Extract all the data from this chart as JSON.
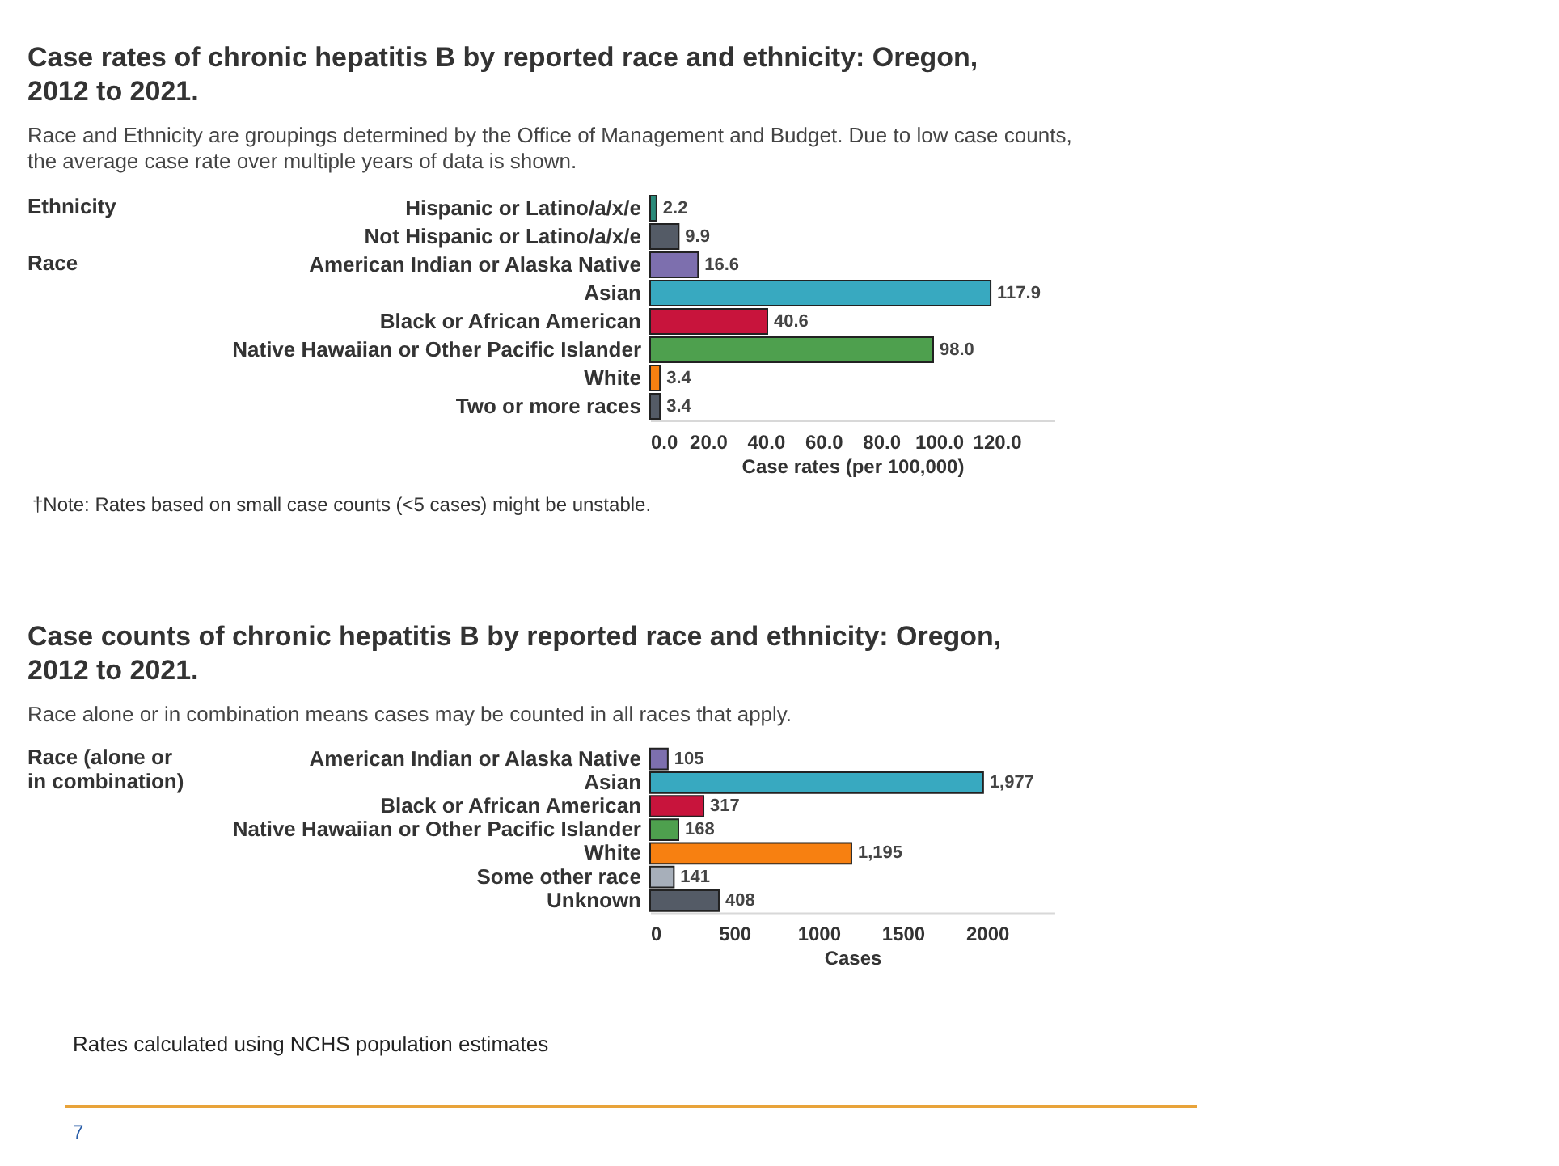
{
  "chart_data": [
    {
      "type": "bar",
      "orientation": "horizontal",
      "title": "Case rates of chronic hepatitis B by reported race and ethnicity: Oregon, 2012 to 2021.",
      "subtitle": "Race and Ethnicity are groupings determined by the Office of Management and Budget. Due to low case counts, the average case rate over multiple years of data is shown.",
      "xlabel": "Case rates (per 100,000)",
      "categories": [
        "Hispanic or Latino/a/x/e",
        "Not Hispanic or Latino/a/x/e",
        "American Indian or Alaska Native",
        "Asian",
        "Black or African American",
        "Native Hawaiian or Other Pacific Islander",
        "White",
        "Two or more races"
      ],
      "values": [
        2.2,
        9.9,
        16.6,
        117.9,
        40.6,
        98.0,
        3.4,
        3.4
      ],
      "value_labels": [
        "2.2",
        "9.9",
        "16.6",
        "117.9",
        "40.6",
        "98.0",
        "3.4",
        "3.4"
      ],
      "colors": [
        "#2a8a7a",
        "#545b66",
        "#7d6fae",
        "#38a9c0",
        "#c8143c",
        "#4ea04e",
        "#f78011",
        "#545b66"
      ],
      "xlim": [
        0,
        140
      ],
      "xticks": [
        {
          "value": 0,
          "label": "0.0"
        },
        {
          "value": 20,
          "label": "20.0"
        },
        {
          "value": 40,
          "label": "40.0"
        },
        {
          "value": 60,
          "label": "60.0"
        },
        {
          "value": 80,
          "label": "80.0"
        },
        {
          "value": 100,
          "label": "100.0"
        },
        {
          "value": 120,
          "label": "120.0"
        }
      ],
      "grid": false,
      "annotations": [
        "Ethnicity",
        "Race",
        "†Note: Rates based on small case counts (<5 cases) might be unstable."
      ]
    },
    {
      "type": "bar",
      "orientation": "horizontal",
      "title": "Case counts of chronic hepatitis B by reported race and ethnicity: Oregon, 2012 to 2021.",
      "subtitle": "Race alone or in combination means cases may be counted in all races that apply.",
      "xlabel": "Cases",
      "categories": [
        "American Indian or Alaska Native",
        "Asian",
        "Black or African American",
        "Native Hawaiian or Other Pacific Islander",
        "White",
        "Some other race",
        "Unknown"
      ],
      "values": [
        105,
        1977,
        317,
        168,
        1195,
        141,
        408
      ],
      "value_labels": [
        "105",
        "1,977",
        "317",
        "168",
        "1,195",
        "141",
        "408"
      ],
      "colors": [
        "#7d6fae",
        "#38a9c0",
        "#c8143c",
        "#4ea04e",
        "#f78011",
        "#a7afba",
        "#545b66"
      ],
      "xlim": [
        0,
        2400
      ],
      "xticks": [
        0,
        500,
        {
          "value": 1000,
          "label": "1000"
        },
        {
          "value": 1500,
          "label": "1500"
        },
        {
          "value": 2000,
          "label": "2000"
        }
      ],
      "grid": false,
      "annotations": [
        "Race (alone or in combination)",
        "Rates calculated using NCHS population estimates",
        "7"
      ]
    }
  ]
}
